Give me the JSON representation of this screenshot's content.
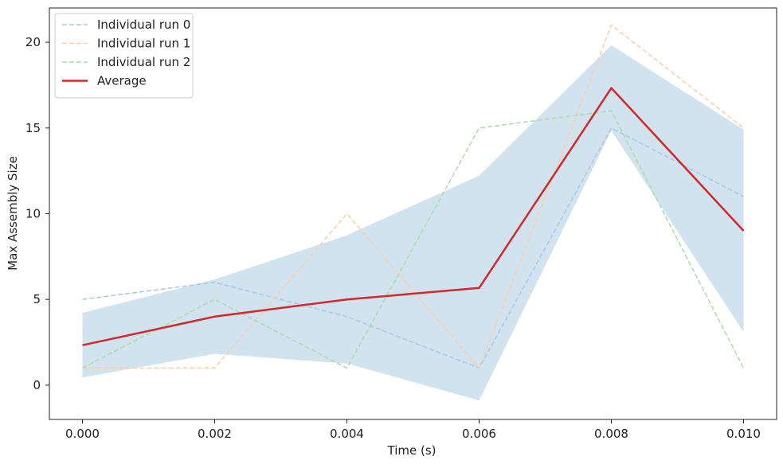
{
  "chart_data": {
    "type": "line",
    "title": "",
    "xlabel": "Time (s)",
    "ylabel": "Max Assembly Size",
    "x": [
      0.0,
      0.002,
      0.004,
      0.006,
      0.008,
      0.01
    ],
    "xlim": [
      -0.0005,
      0.0105
    ],
    "ylim": [
      -2.0,
      22.0
    ],
    "xticks": [
      0.0,
      0.002,
      0.004,
      0.006,
      0.008,
      0.01
    ],
    "xtick_labels": [
      "0.000",
      "0.002",
      "0.004",
      "0.006",
      "0.008",
      "0.010"
    ],
    "yticks": [
      0,
      5,
      10,
      15,
      20
    ],
    "ytick_labels": [
      "0",
      "5",
      "10",
      "15",
      "20"
    ],
    "grid": false,
    "legend_position": "top-left",
    "series": [
      {
        "name": "Individual run 0",
        "values": [
          5,
          6,
          4,
          1,
          15,
          11
        ],
        "color": "#a6c8e3",
        "style": "dashed"
      },
      {
        "name": "Individual run 1",
        "values": [
          1,
          1,
          10,
          1,
          21,
          15
        ],
        "color": "#fdcda6",
        "style": "dashed"
      },
      {
        "name": "Individual run 2",
        "values": [
          1,
          5,
          1,
          15,
          16,
          1
        ],
        "color": "#a9dca3",
        "style": "dashed"
      },
      {
        "name": "Average",
        "values": [
          2.33,
          4.0,
          5.0,
          5.67,
          17.33,
          9.0
        ],
        "color": "#d62728",
        "style": "solid"
      }
    ],
    "band": {
      "color": "#d1e3ef",
      "lower": [
        0.45,
        1.83,
        1.26,
        -0.89,
        14.84,
        3.1
      ],
      "upper": [
        4.22,
        6.17,
        8.74,
        12.22,
        19.83,
        14.9
      ]
    }
  }
}
